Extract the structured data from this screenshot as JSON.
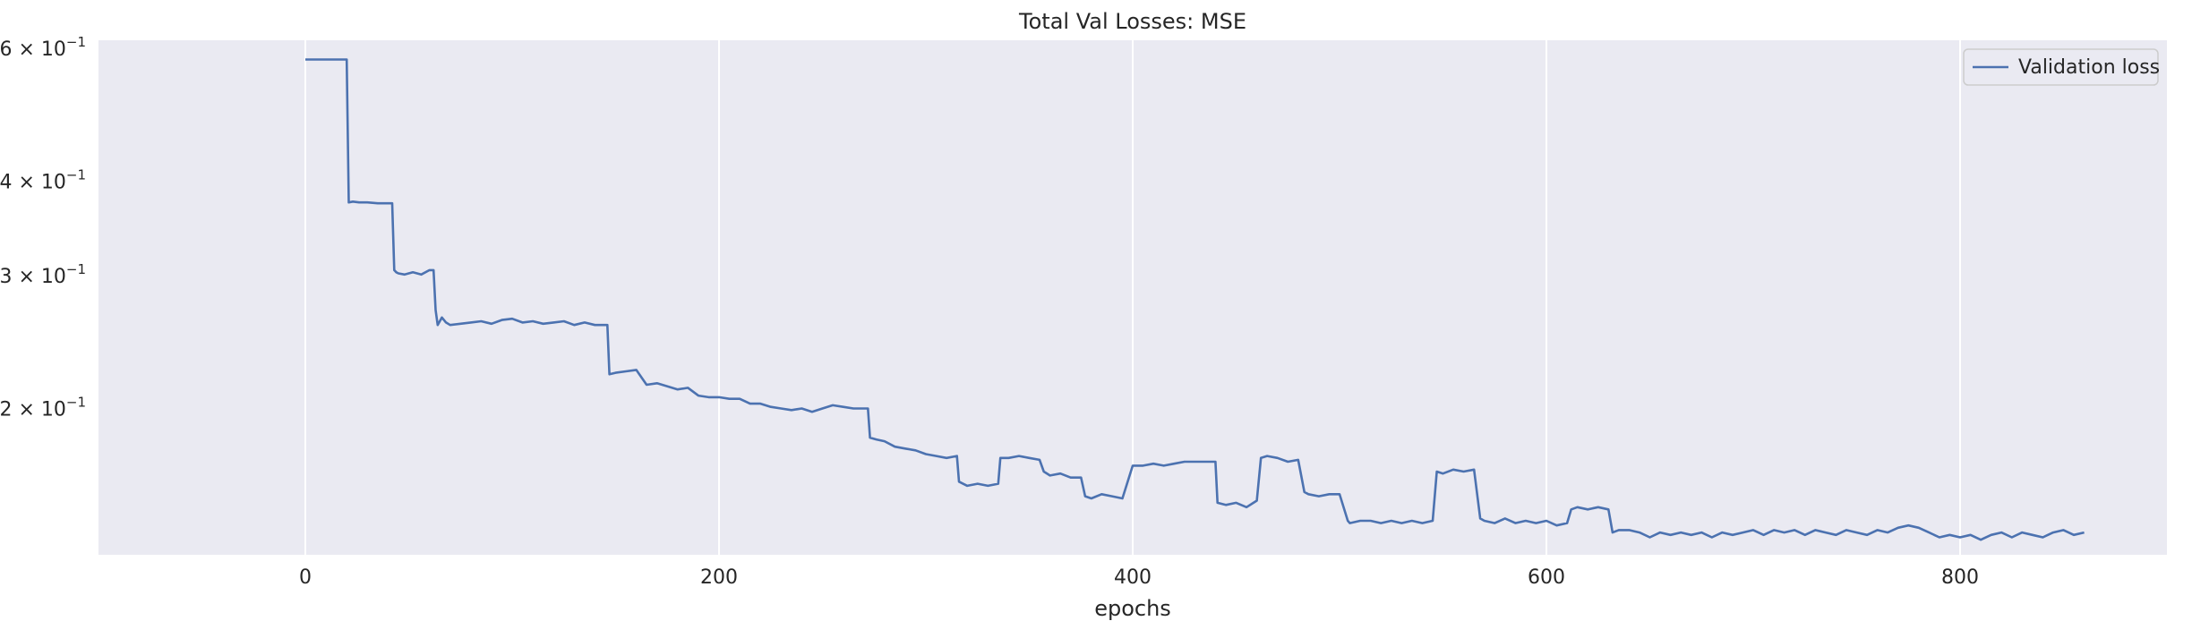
{
  "chart_data": {
    "type": "line",
    "title": "Total Val Losses:  MSE",
    "xlabel": "epochs",
    "ylabel": "",
    "yscale": "log",
    "xlim": [
      -100,
      900
    ],
    "ylim": [
      0.128,
      0.615
    ],
    "grid": true,
    "legend_position": "top-right",
    "x_ticks": [
      0,
      200,
      400,
      600,
      800
    ],
    "x_tick_labels": [
      "0",
      "200",
      "400",
      "600",
      "800"
    ],
    "y_ticks": [
      0.2,
      0.3,
      0.4,
      0.6
    ],
    "y_tick_labels": [
      {
        "mantissa": "2",
        "exp": "−1"
      },
      {
        "mantissa": "3",
        "exp": "−1"
      },
      {
        "mantissa": "4",
        "exp": "−1"
      },
      {
        "mantissa": "6",
        "exp": "−1"
      }
    ],
    "series": [
      {
        "name": "Validation loss",
        "color": "#4c72b0",
        "x": [
          0,
          20,
          21,
          23,
          26,
          30,
          35,
          42,
          43,
          44,
          45,
          48,
          52,
          56,
          60,
          62,
          63,
          64,
          66,
          68,
          70,
          75,
          80,
          85,
          90,
          95,
          100,
          105,
          110,
          115,
          120,
          125,
          130,
          135,
          140,
          146,
          147,
          150,
          155,
          160,
          165,
          170,
          175,
          180,
          185,
          190,
          195,
          200,
          205,
          210,
          215,
          220,
          225,
          230,
          235,
          240,
          245,
          250,
          255,
          260,
          265,
          270,
          272,
          273,
          276,
          280,
          285,
          290,
          295,
          300,
          305,
          310,
          315,
          316,
          320,
          325,
          330,
          335,
          336,
          340,
          345,
          350,
          355,
          357,
          360,
          365,
          370,
          375,
          377,
          380,
          385,
          390,
          395,
          400,
          405,
          410,
          415,
          420,
          425,
          430,
          440,
          441,
          445,
          450,
          455,
          460,
          462,
          465,
          470,
          475,
          480,
          483,
          485,
          490,
          495,
          500,
          504,
          505,
          510,
          515,
          520,
          525,
          530,
          535,
          540,
          545,
          547,
          550,
          555,
          560,
          565,
          568,
          570,
          575,
          580,
          585,
          590,
          595,
          600,
          605,
          610,
          612,
          615,
          620,
          625,
          630,
          632,
          635,
          640,
          645,
          650,
          655,
          660,
          665,
          670,
          675,
          680,
          685,
          690,
          695,
          700,
          705,
          710,
          715,
          720,
          725,
          730,
          735,
          740,
          745,
          750,
          755,
          760,
          765,
          770,
          775,
          780,
          785,
          790,
          795,
          800,
          805,
          810,
          815,
          820,
          825,
          830,
          835,
          840,
          845,
          850,
          855,
          860
        ],
        "values": [
          0.58,
          0.58,
          0.375,
          0.376,
          0.375,
          0.375,
          0.374,
          0.374,
          0.305,
          0.303,
          0.302,
          0.301,
          0.303,
          0.301,
          0.305,
          0.305,
          0.27,
          0.258,
          0.264,
          0.26,
          0.258,
          0.259,
          0.26,
          0.261,
          0.259,
          0.262,
          0.263,
          0.26,
          0.261,
          0.259,
          0.26,
          0.261,
          0.258,
          0.26,
          0.258,
          0.258,
          0.222,
          0.223,
          0.224,
          0.225,
          0.215,
          0.216,
          0.214,
          0.212,
          0.213,
          0.208,
          0.207,
          0.207,
          0.206,
          0.206,
          0.203,
          0.203,
          0.201,
          0.2,
          0.199,
          0.2,
          0.198,
          0.2,
          0.202,
          0.201,
          0.2,
          0.2,
          0.2,
          0.183,
          0.182,
          0.181,
          0.178,
          0.177,
          0.176,
          0.174,
          0.173,
          0.172,
          0.173,
          0.16,
          0.158,
          0.159,
          0.158,
          0.159,
          0.172,
          0.172,
          0.173,
          0.172,
          0.171,
          0.165,
          0.163,
          0.164,
          0.162,
          0.162,
          0.153,
          0.152,
          0.154,
          0.153,
          0.152,
          0.168,
          0.168,
          0.169,
          0.168,
          0.169,
          0.17,
          0.17,
          0.17,
          0.15,
          0.149,
          0.15,
          0.148,
          0.151,
          0.172,
          0.173,
          0.172,
          0.17,
          0.171,
          0.155,
          0.154,
          0.153,
          0.154,
          0.154,
          0.142,
          0.141,
          0.142,
          0.142,
          0.141,
          0.142,
          0.141,
          0.142,
          0.141,
          0.142,
          0.165,
          0.164,
          0.166,
          0.165,
          0.166,
          0.143,
          0.142,
          0.141,
          0.143,
          0.141,
          0.142,
          0.141,
          0.142,
          0.14,
          0.141,
          0.147,
          0.148,
          0.147,
          0.148,
          0.147,
          0.137,
          0.138,
          0.138,
          0.137,
          0.135,
          0.137,
          0.136,
          0.137,
          0.136,
          0.137,
          0.135,
          0.137,
          0.136,
          0.137,
          0.138,
          0.136,
          0.138,
          0.137,
          0.138,
          0.136,
          0.138,
          0.137,
          0.136,
          0.138,
          0.137,
          0.136,
          0.138,
          0.137,
          0.139,
          0.14,
          0.139,
          0.137,
          0.135,
          0.136,
          0.135,
          0.136,
          0.134,
          0.136,
          0.137,
          0.135,
          0.137,
          0.136,
          0.135,
          0.137,
          0.138,
          0.136,
          0.137
        ]
      }
    ]
  }
}
